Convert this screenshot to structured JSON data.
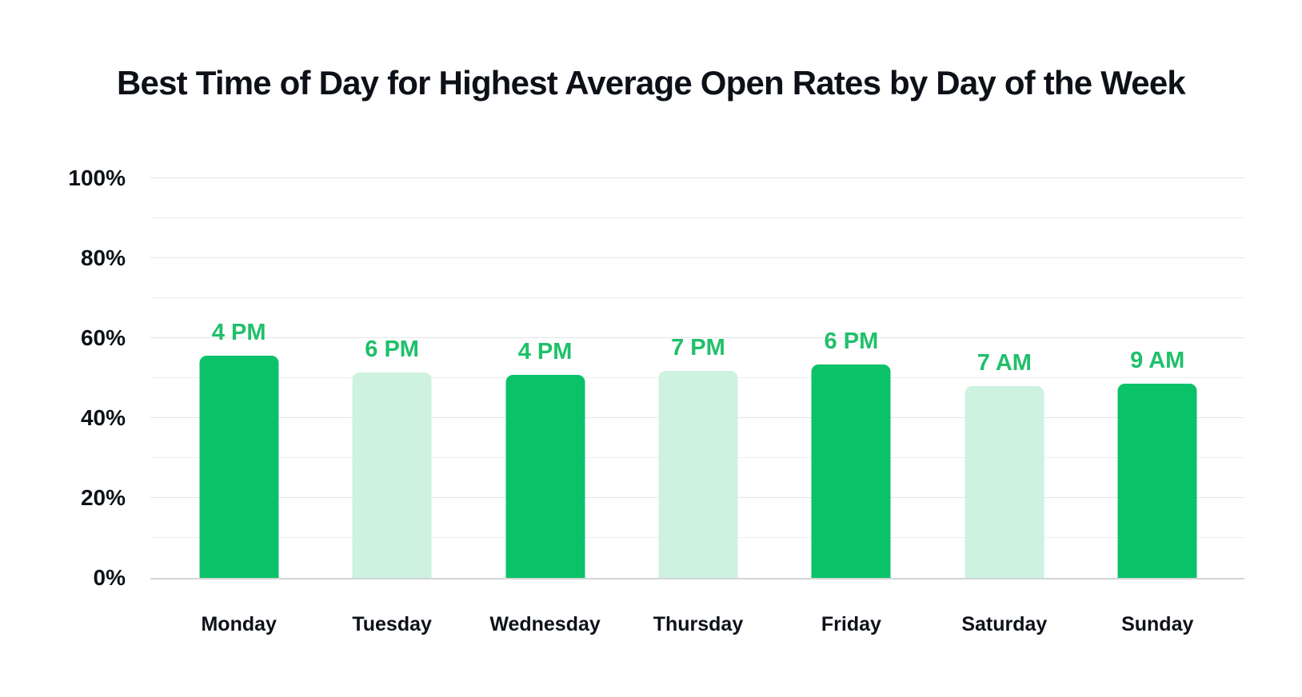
{
  "page": {
    "background": "#ffffff"
  },
  "chart_data": {
    "type": "bar",
    "title": "Best Time of Day for Highest Average Open Rates by Day of the Week",
    "categories": [
      "Monday",
      "Tuesday",
      "Wednesday",
      "Thursday",
      "Friday",
      "Saturday",
      "Sunday"
    ],
    "values": [
      55.6,
      51.5,
      50.9,
      51.8,
      53.5,
      48.0,
      48.6
    ],
    "point_labels": [
      "4 PM",
      "6 PM",
      "4 PM",
      "7 PM",
      "6 PM",
      "7 AM",
      "9 AM"
    ],
    "bar_colors": [
      "#0cc268",
      "#cdf2e0",
      "#0cc268",
      "#cdf2e0",
      "#0cc268",
      "#cdf2e0",
      "#0cc268"
    ],
    "xlabel": "",
    "ylabel": "",
    "ylim": [
      0,
      100
    ],
    "y_tick_labels": [
      "0%",
      "20%",
      "40%",
      "60%",
      "80%",
      "100%"
    ],
    "y_major_step": 20,
    "y_minor_step": 10,
    "grid": "horizontal",
    "legend": "none",
    "colors": {
      "bar_dark": "#0cc268",
      "bar_light": "#cdf2e0",
      "time_label_green": "#1fc06a",
      "text": "#0d1117",
      "grid_minor": "#eeeeef",
      "grid_major": "#e3e5e7",
      "axis_baseline": "#d2d6d8"
    }
  }
}
